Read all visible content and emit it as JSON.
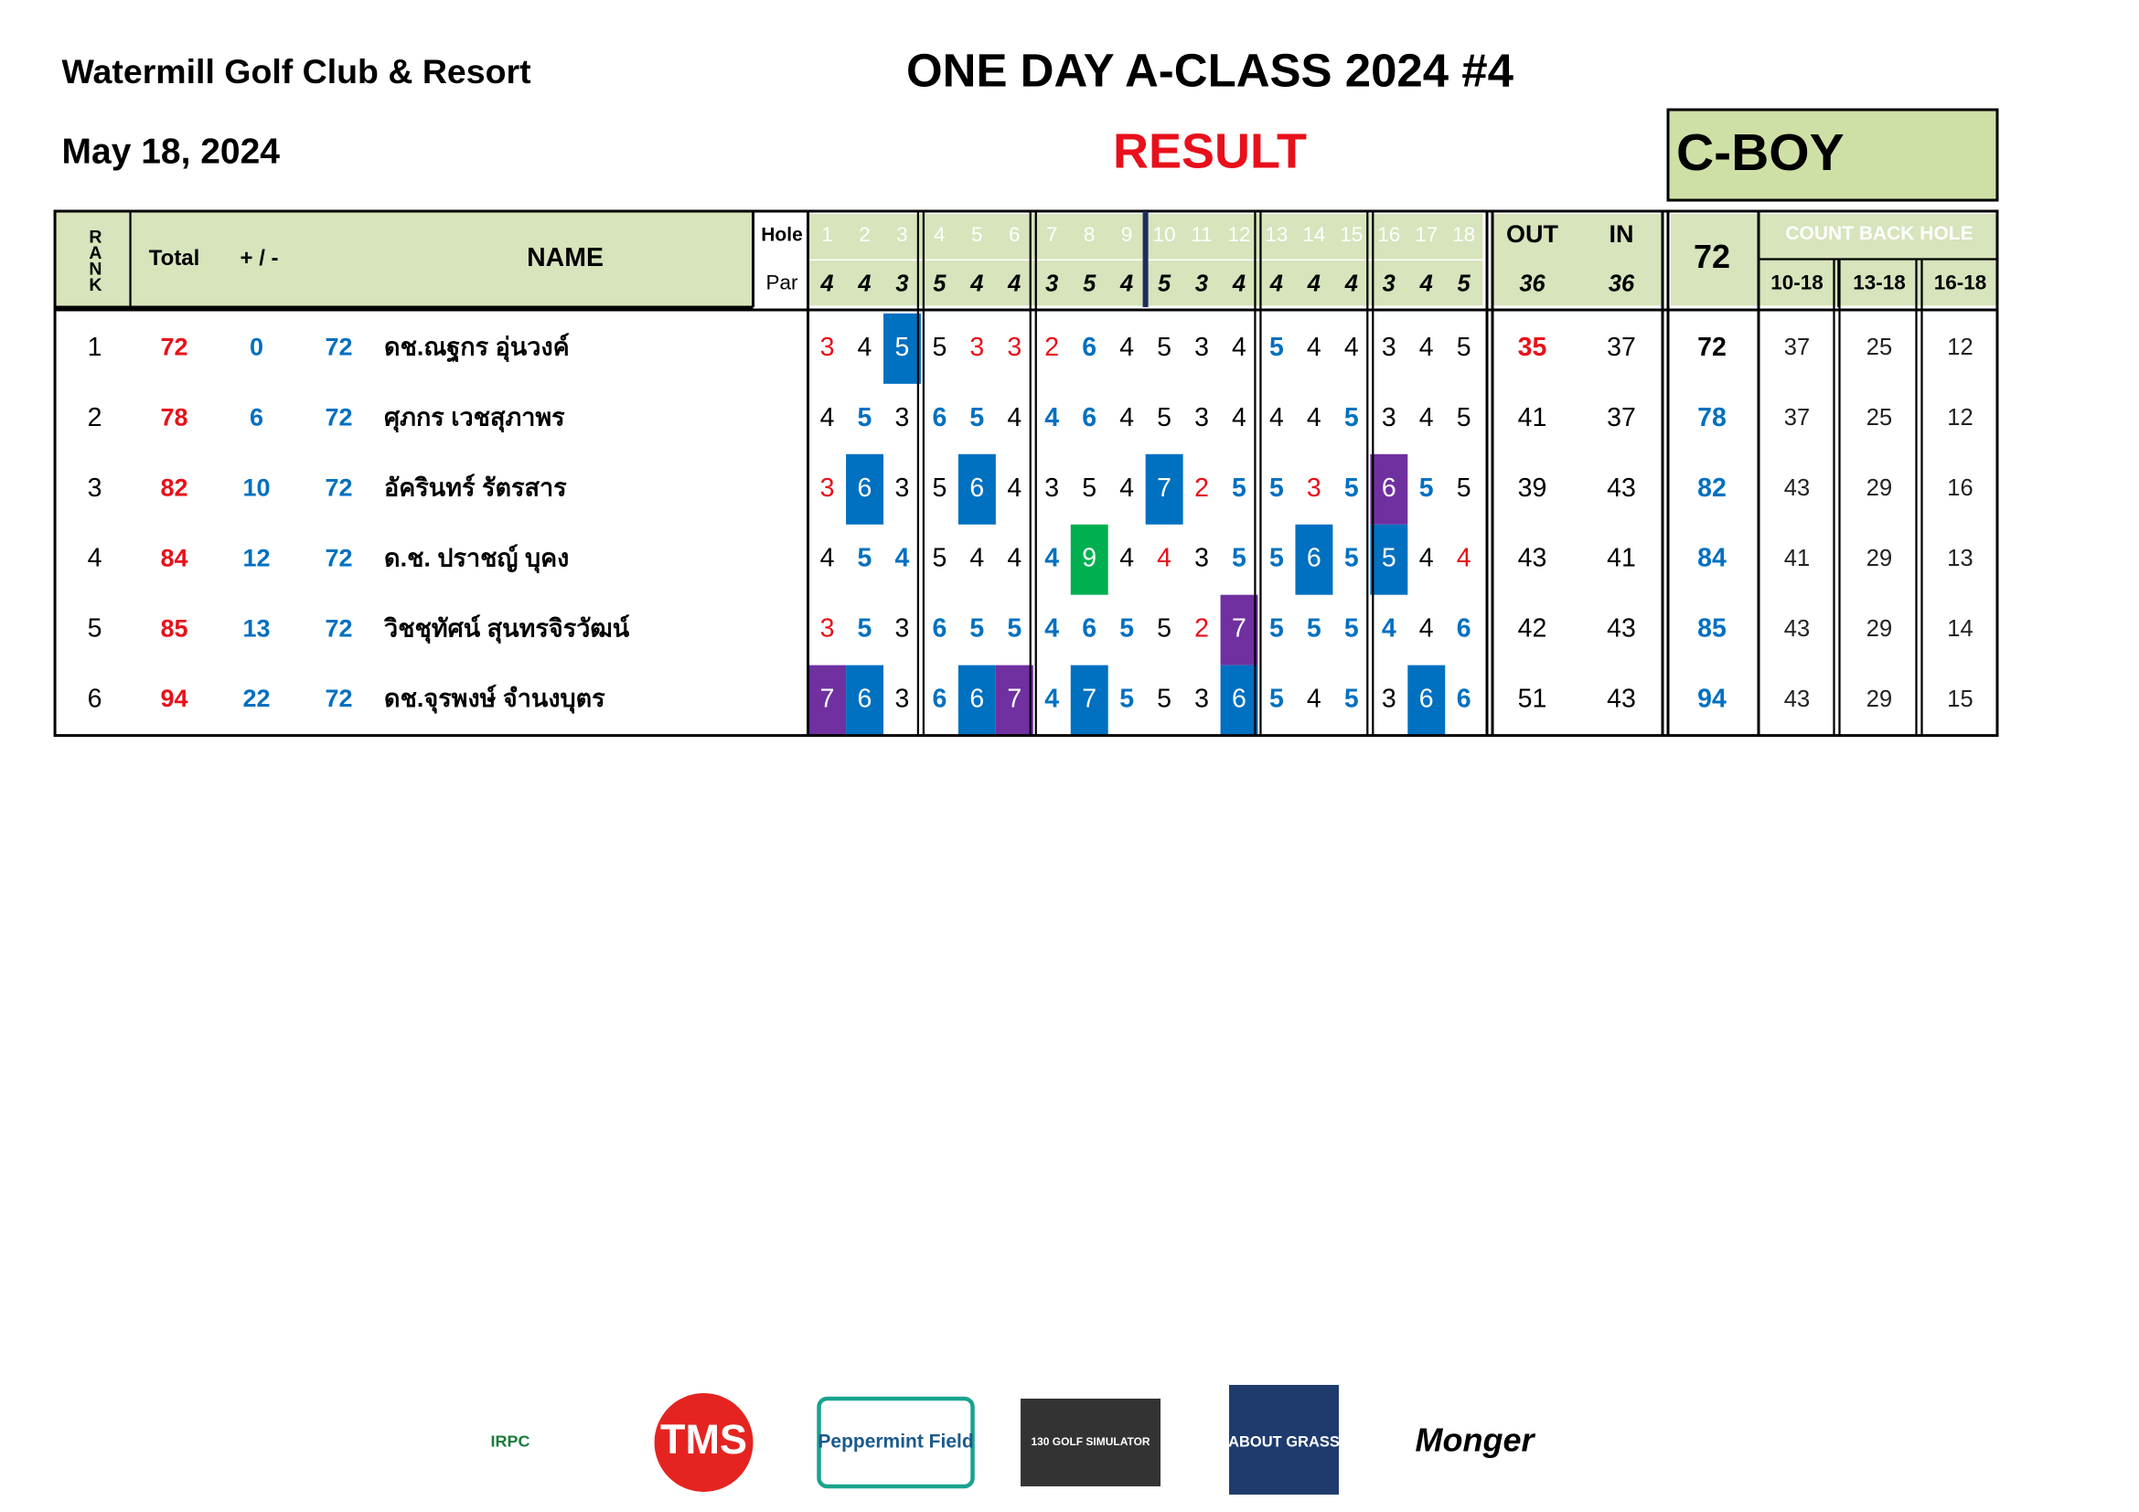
{
  "header": {
    "club": "Watermill Golf Club & Resort",
    "date": "May 18, 2024",
    "title": "ONE DAY A-CLASS 2024 #4",
    "subtitle": "RESULT",
    "division": "C-BOY"
  },
  "table": {
    "columns": {
      "rank": "RANK",
      "total": "Total",
      "diff": "+ / -",
      "name": "NAME",
      "hole": "Hole",
      "par": "Par",
      "out": "OUT",
      "in": "IN",
      "countback": "COUNT BACK HOLE",
      "countback_cols": [
        "10-18",
        "13-18",
        "16-18"
      ]
    },
    "holes": [
      1,
      2,
      3,
      4,
      5,
      6,
      7,
      8,
      9,
      10,
      11,
      12,
      13,
      14,
      15,
      16,
      17,
      18
    ],
    "pars": [
      4,
      4,
      3,
      5,
      4,
      4,
      3,
      5,
      4,
      5,
      3,
      4,
      4,
      4,
      4,
      3,
      4,
      5
    ],
    "out_par": 36,
    "in_par": 36,
    "course_par": 72,
    "rows": [
      {
        "rank": 1,
        "total": 72,
        "diff": 0,
        "par": 72,
        "name": "ดช.ณฐกร  อุ่นวงค์",
        "scores": [
          3,
          4,
          5,
          5,
          3,
          3,
          2,
          6,
          4,
          5,
          3,
          4,
          5,
          4,
          4,
          3,
          4,
          5
        ],
        "out": 35,
        "in": 37,
        "gross": 72,
        "countback": [
          37,
          25,
          12
        ]
      },
      {
        "rank": 2,
        "total": 78,
        "diff": 6,
        "par": 72,
        "name": "ศุภกร เวชสุภาพร",
        "scores": [
          4,
          5,
          3,
          6,
          5,
          4,
          4,
          6,
          4,
          5,
          3,
          4,
          4,
          4,
          5,
          3,
          4,
          5
        ],
        "out": 41,
        "in": 37,
        "gross": 78,
        "countback": [
          37,
          25,
          12
        ]
      },
      {
        "rank": 3,
        "total": 82,
        "diff": 10,
        "par": 72,
        "name": "อัครินทร์ รัตรสาร",
        "scores": [
          3,
          6,
          3,
          5,
          6,
          4,
          3,
          5,
          4,
          7,
          2,
          5,
          5,
          3,
          5,
          6,
          5,
          5
        ],
        "out": 39,
        "in": 43,
        "gross": 82,
        "countback": [
          43,
          29,
          16
        ]
      },
      {
        "rank": 4,
        "total": 84,
        "diff": 12,
        "par": 72,
        "name": "ด.ช. ปราชญ์ บุคง",
        "scores": [
          4,
          5,
          4,
          5,
          4,
          4,
          4,
          9,
          4,
          4,
          3,
          5,
          5,
          6,
          5,
          5,
          4,
          4
        ],
        "out": 43,
        "in": 41,
        "gross": 84,
        "countback": [
          41,
          29,
          13
        ]
      },
      {
        "rank": 5,
        "total": 85,
        "diff": 13,
        "par": 72,
        "name": "วิชชุทัศน์  สุนทรจิรวัฒน์",
        "scores": [
          3,
          5,
          3,
          6,
          5,
          5,
          4,
          6,
          5,
          5,
          2,
          7,
          5,
          5,
          5,
          4,
          4,
          6
        ],
        "out": 42,
        "in": 43,
        "gross": 85,
        "countback": [
          43,
          29,
          14
        ]
      },
      {
        "rank": 6,
        "total": 94,
        "diff": 22,
        "par": 72,
        "name": "ดช.จุรพงษ์  จำนงบุตร",
        "scores": [
          7,
          6,
          3,
          6,
          6,
          7,
          4,
          7,
          5,
          5,
          3,
          6,
          5,
          4,
          5,
          3,
          6,
          6
        ],
        "out": 51,
        "in": 43,
        "gross": 94,
        "countback": [
          43,
          29,
          15
        ]
      }
    ]
  },
  "sponsors": [
    "IRPC",
    "TMS",
    "Peppermint Field",
    "130 GOLF SIMULATOR",
    "ABOUT GRASS",
    "Monger"
  ]
}
